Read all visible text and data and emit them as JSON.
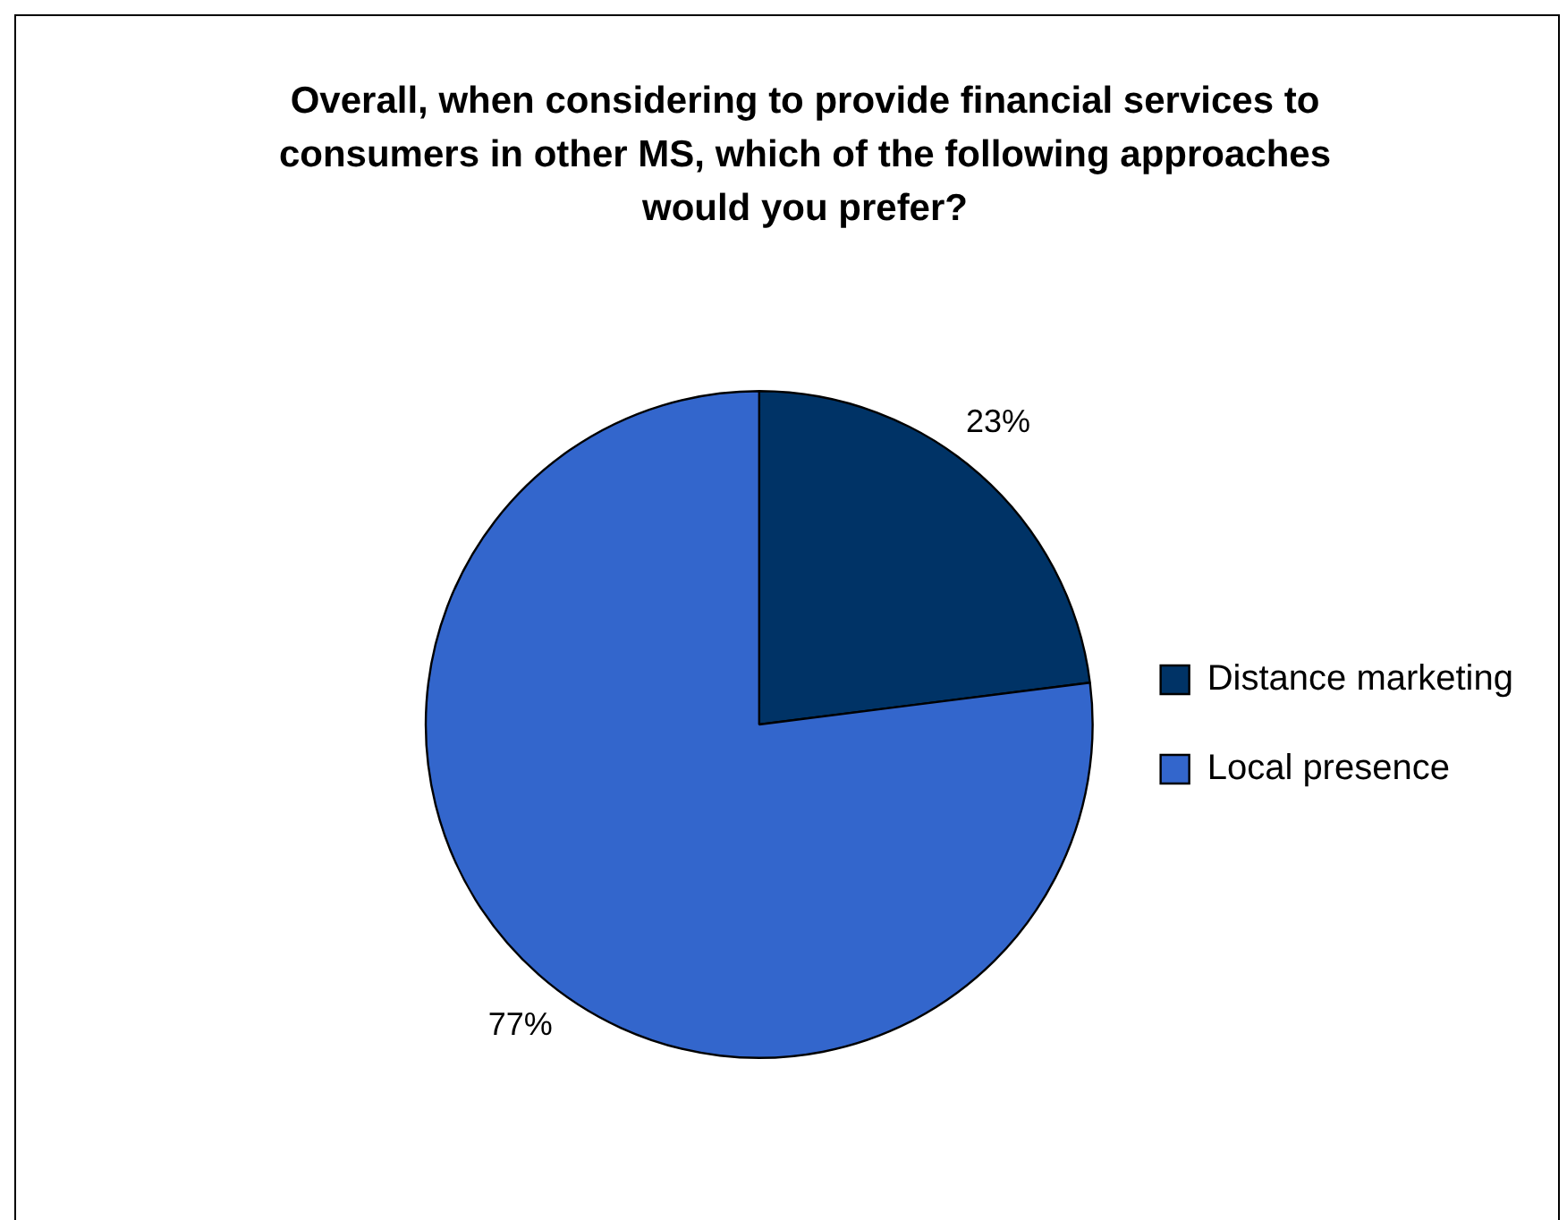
{
  "chart_data": {
    "type": "pie",
    "title": "Overall, when considering to provide financial services to consumers in other MS, which of the following approaches would you prefer?",
    "categories": [
      "Distance marketing",
      "Local presence"
    ],
    "values": [
      23,
      77
    ],
    "colors": [
      "#003366",
      "#3366cc"
    ],
    "value_labels": [
      "23%",
      "77%"
    ],
    "legend": "right"
  }
}
